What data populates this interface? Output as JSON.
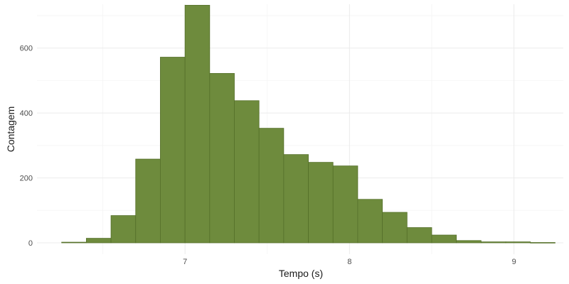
{
  "chart_data": {
    "type": "bar",
    "subtype": "histogram",
    "title": "",
    "xlabel": "Tempo (s)",
    "ylabel": "Contagem",
    "xlim": [
      6.1,
      9.3
    ],
    "ylim": [
      -35,
      735
    ],
    "x_ticks": [
      7,
      8,
      9
    ],
    "x_tick_labels": [
      "7",
      "8",
      "9"
    ],
    "y_ticks": [
      0,
      200,
      400,
      600
    ],
    "y_tick_labels": [
      "0",
      "200",
      "400",
      "600"
    ],
    "grid": true,
    "bin_width": 0.15,
    "bins": [
      {
        "x0": 6.25,
        "x1": 6.4,
        "count": 2
      },
      {
        "x0": 6.4,
        "x1": 6.55,
        "count": 14
      },
      {
        "x0": 6.55,
        "x1": 6.7,
        "count": 84
      },
      {
        "x0": 6.7,
        "x1": 6.85,
        "count": 258
      },
      {
        "x0": 6.85,
        "x1": 7.0,
        "count": 572
      },
      {
        "x0": 7.0,
        "x1": 7.15,
        "count": 732
      },
      {
        "x0": 7.15,
        "x1": 7.3,
        "count": 522
      },
      {
        "x0": 7.3,
        "x1": 7.45,
        "count": 438
      },
      {
        "x0": 7.45,
        "x1": 7.6,
        "count": 353
      },
      {
        "x0": 7.6,
        "x1": 7.75,
        "count": 272
      },
      {
        "x0": 7.75,
        "x1": 7.9,
        "count": 248
      },
      {
        "x0": 7.9,
        "x1": 8.05,
        "count": 237
      },
      {
        "x0": 8.05,
        "x1": 8.2,
        "count": 134
      },
      {
        "x0": 8.2,
        "x1": 8.35,
        "count": 94
      },
      {
        "x0": 8.35,
        "x1": 8.5,
        "count": 47
      },
      {
        "x0": 8.5,
        "x1": 8.65,
        "count": 24
      },
      {
        "x0": 8.65,
        "x1": 8.8,
        "count": 7
      },
      {
        "x0": 8.8,
        "x1": 8.95,
        "count": 3
      },
      {
        "x0": 8.95,
        "x1": 9.1,
        "count": 3
      },
      {
        "x0": 9.1,
        "x1": 9.25,
        "count": 1
      }
    ],
    "bar_color": "#6e8b3d",
    "bar_border_color": "#55702a"
  }
}
